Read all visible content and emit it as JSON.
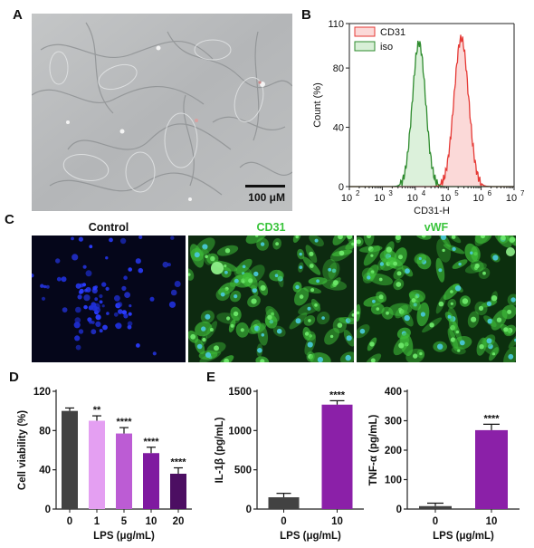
{
  "panel_labels": {
    "a": "A",
    "b": "B",
    "c": "C",
    "d": "D",
    "e": "E"
  },
  "panel_a": {
    "scale_bar_label": "100 μM"
  },
  "panel_c": {
    "titles": [
      "Control",
      "CD31",
      "vWF"
    ]
  },
  "colors": {
    "cd31_line": "#e53935",
    "iso_line": "#2e8b2e",
    "bar_dark": "#424242",
    "purple": "#8b20a8"
  },
  "chart_data": [
    {
      "panel": "B",
      "type": "area",
      "xlabel": "CD31-H",
      "ylabel": "Count (%)",
      "xscale": "log",
      "xlim": [
        100,
        10000000
      ],
      "x_tick_labels": [
        "10",
        "10",
        "10",
        "10",
        "10",
        "10"
      ],
      "x_tick_exponents": [
        "2",
        "3",
        "4",
        "5",
        "6",
        "7"
      ],
      "y_ticks": [
        0,
        40,
        80,
        110
      ],
      "legend": [
        "CD31",
        "iso"
      ],
      "legend_position": "top-left",
      "series": [
        {
          "name": "CD31",
          "peak_x": 250000,
          "peak_y": 100
        },
        {
          "name": "iso",
          "peak_x": 13000,
          "peak_y": 97
        }
      ]
    },
    {
      "panel": "D",
      "type": "bar",
      "ylabel": "Cell viability (%)",
      "xlabel": "LPS (μg/mL)",
      "categories": [
        "0",
        "1",
        "5",
        "10",
        "20"
      ],
      "values": [
        100,
        90,
        77,
        57,
        36
      ],
      "errors": [
        3,
        5,
        6,
        6,
        6
      ],
      "significance": [
        "",
        "**",
        "****",
        "****",
        "****"
      ],
      "ylim": [
        0,
        120
      ],
      "y_ticks": [
        0,
        40,
        80,
        120
      ]
    },
    {
      "panel": "E",
      "type": "bar",
      "ylabel": "IL-1β (pg/mL)",
      "xlabel": "LPS (μg/mL)",
      "categories": [
        "0",
        "10"
      ],
      "values": [
        150,
        1330
      ],
      "errors": [
        50,
        50
      ],
      "significance": [
        "",
        "****"
      ],
      "ylim": [
        0,
        1500
      ],
      "y_ticks": [
        0,
        500,
        1000,
        1500
      ]
    },
    {
      "panel": "E",
      "type": "bar",
      "ylabel": "TNF-α (pg/mL)",
      "xlabel": "LPS (μg/mL)",
      "categories": [
        "0",
        "10"
      ],
      "values": [
        10,
        268
      ],
      "errors": [
        10,
        20
      ],
      "significance": [
        "",
        "****"
      ],
      "ylim": [
        0,
        400
      ],
      "y_ticks": [
        0,
        100,
        200,
        300,
        400
      ]
    }
  ]
}
